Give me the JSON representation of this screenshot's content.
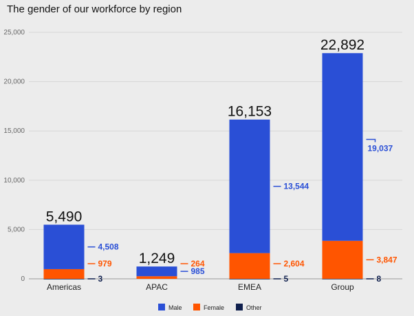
{
  "chart_data": {
    "type": "bar",
    "stacked": true,
    "title": "The gender of our workforce by region",
    "categories": [
      "Americas",
      "APAC",
      "EMEA",
      "Group"
    ],
    "totals": [
      "5,490",
      "1,249",
      "16,153",
      "22,892"
    ],
    "series": [
      {
        "name": "Male",
        "color": "#2a4fd6",
        "values": [
          4508,
          985,
          13544,
          19037
        ],
        "labels": [
          "4,508",
          "985",
          "13,544",
          "19,037"
        ]
      },
      {
        "name": "Female",
        "color": "#ff5500",
        "values": [
          979,
          264,
          2604,
          3847
        ],
        "labels": [
          "979",
          "264",
          "2,604",
          "3,847"
        ]
      },
      {
        "name": "Other",
        "color": "#0f1f4d",
        "values": [
          3,
          0,
          5,
          8
        ],
        "labels": [
          "3",
          "",
          "5",
          "8"
        ]
      }
    ],
    "y_ticks": [
      "0",
      "5,000",
      "10,000",
      "15,000",
      "20,000",
      "25,000"
    ],
    "ylim": [
      0,
      25000
    ],
    "grid": true,
    "legend": "bottom-center"
  }
}
